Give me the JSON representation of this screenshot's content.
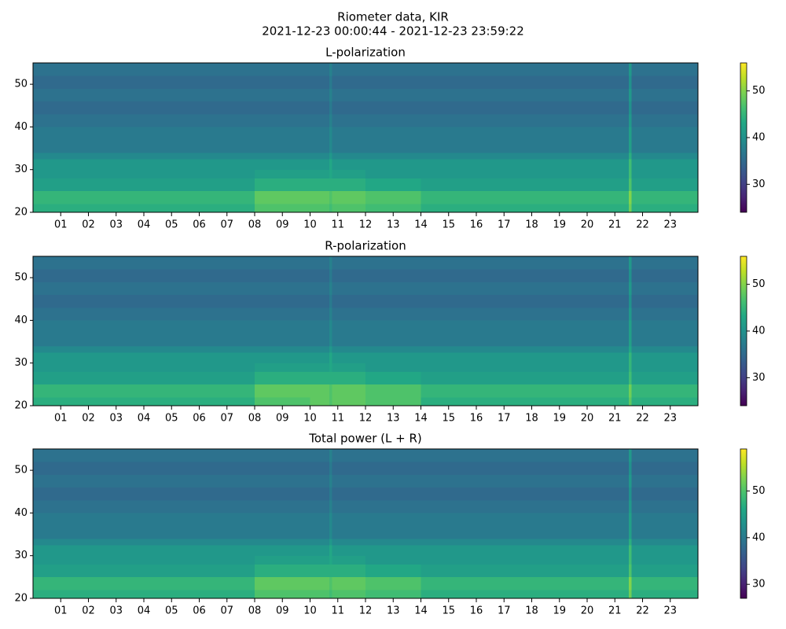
{
  "figure": {
    "title": "Riometer data, KIR",
    "subtitle": "2021-12-23 00:00:44 - 2021-12-23 23:59:22"
  },
  "chart_data": [
    {
      "type": "heatmap",
      "title": "L-polarization",
      "colormap": "viridis",
      "x": [
        0,
        2,
        4,
        6,
        8,
        10,
        10.7,
        10.8,
        12,
        14,
        16,
        18,
        20,
        21.5,
        21.6,
        22,
        24
      ],
      "y": [
        20,
        22,
        25,
        28,
        30,
        32.5,
        34,
        37,
        40,
        43,
        46,
        49,
        52,
        55
      ],
      "z": [
        [
          44,
          44,
          44,
          44,
          47,
          47,
          46,
          47,
          46,
          44,
          44,
          44,
          44,
          49,
          44,
          44
        ],
        [
          45,
          45,
          45,
          45,
          48,
          48,
          47,
          48,
          47,
          45,
          45,
          45,
          45,
          50,
          45,
          45
        ],
        [
          42,
          42,
          42,
          42,
          44,
          44,
          44,
          44,
          43,
          42,
          42,
          42,
          42,
          47,
          42,
          42
        ],
        [
          41,
          41,
          41,
          41,
          42,
          42,
          43,
          42,
          41,
          41,
          41,
          41,
          41,
          46,
          41,
          41
        ],
        [
          41,
          41,
          41,
          41,
          41,
          41,
          43,
          41,
          41,
          41,
          41,
          41,
          41,
          46,
          41,
          41
        ],
        [
          39,
          39,
          39,
          39,
          39,
          39,
          41,
          39,
          39,
          39,
          39,
          39,
          39,
          44,
          39,
          39
        ],
        [
          37,
          37,
          37,
          37,
          37,
          37,
          39,
          37,
          37,
          37,
          37,
          37,
          37,
          42,
          37,
          37
        ],
        [
          37,
          37,
          37,
          37,
          37,
          37,
          39,
          37,
          37,
          37,
          37,
          37,
          37,
          42,
          37,
          37
        ],
        [
          36,
          36,
          36,
          36,
          36,
          36,
          38,
          36,
          36,
          36,
          36,
          36,
          36,
          41,
          36,
          36
        ],
        [
          35,
          35,
          35,
          35,
          35,
          35,
          37,
          35,
          35,
          35,
          35,
          35,
          35,
          40,
          35,
          35
        ],
        [
          36,
          36,
          36,
          36,
          36,
          36,
          38,
          36,
          36,
          36,
          36,
          36,
          36,
          41,
          36,
          36
        ],
        [
          35,
          35,
          35,
          35,
          35,
          35,
          37,
          35,
          35,
          35,
          35,
          35,
          35,
          40,
          35,
          35
        ],
        [
          36,
          36,
          36,
          36,
          36,
          36,
          38,
          36,
          36,
          36,
          36,
          36,
          36,
          41,
          36,
          36
        ]
      ],
      "xlim": [
        0,
        24
      ],
      "ylim": [
        20,
        55
      ],
      "yticks": [
        20,
        30,
        40,
        50
      ],
      "xticks": [
        {
          "value": 1,
          "label": "01"
        },
        {
          "value": 2,
          "label": "02"
        },
        {
          "value": 3,
          "label": "03"
        },
        {
          "value": 4,
          "label": "04"
        },
        {
          "value": 5,
          "label": "05"
        },
        {
          "value": 6,
          "label": "06"
        },
        {
          "value": 7,
          "label": "07"
        },
        {
          "value": 8,
          "label": "08"
        },
        {
          "value": 9,
          "label": "09"
        },
        {
          "value": 10,
          "label": "10"
        },
        {
          "value": 11,
          "label": "11"
        },
        {
          "value": 12,
          "label": "12"
        },
        {
          "value": 13,
          "label": "13"
        },
        {
          "value": 14,
          "label": "14"
        },
        {
          "value": 15,
          "label": "15"
        },
        {
          "value": 16,
          "label": "16"
        },
        {
          "value": 17,
          "label": "17"
        },
        {
          "value": 18,
          "label": "18"
        },
        {
          "value": 19,
          "label": "19"
        },
        {
          "value": 20,
          "label": "20"
        },
        {
          "value": 21,
          "label": "21"
        },
        {
          "value": 22,
          "label": "22"
        },
        {
          "value": 23,
          "label": "23"
        }
      ],
      "clim": [
        24,
        56
      ],
      "cticks": [
        30,
        40,
        50
      ]
    },
    {
      "type": "heatmap",
      "title": "R-polarization",
      "colormap": "viridis",
      "x": [
        0,
        2,
        4,
        6,
        8,
        10,
        10.7,
        10.8,
        12,
        14,
        16,
        18,
        20,
        21.5,
        21.6,
        22,
        24
      ],
      "y": [
        20,
        22,
        25,
        28,
        30,
        32.5,
        34,
        37,
        40,
        43,
        46,
        49,
        52,
        55
      ],
      "z": [
        [
          44,
          44,
          44,
          44,
          47,
          48,
          47,
          48,
          47,
          44,
          44,
          44,
          44,
          48,
          44,
          44
        ],
        [
          45,
          45,
          45,
          45,
          48,
          48,
          47,
          48,
          47,
          45,
          45,
          45,
          45,
          49,
          45,
          45
        ],
        [
          42,
          42,
          42,
          42,
          44,
          44,
          44,
          44,
          43,
          42,
          42,
          42,
          42,
          46,
          42,
          42
        ],
        [
          41,
          41,
          41,
          41,
          42,
          42,
          43,
          42,
          41,
          41,
          41,
          41,
          41,
          45,
          41,
          41
        ],
        [
          41,
          41,
          41,
          41,
          41,
          41,
          43,
          41,
          41,
          41,
          41,
          41,
          41,
          45,
          41,
          41
        ],
        [
          39,
          39,
          39,
          39,
          39,
          39,
          41,
          39,
          39,
          39,
          39,
          39,
          39,
          43,
          39,
          39
        ],
        [
          37,
          37,
          37,
          37,
          37,
          37,
          39,
          37,
          37,
          37,
          37,
          37,
          37,
          42,
          37,
          37
        ],
        [
          37,
          37,
          37,
          37,
          37,
          37,
          39,
          37,
          37,
          37,
          37,
          37,
          37,
          42,
          37,
          37
        ],
        [
          36,
          36,
          36,
          36,
          36,
          36,
          38,
          36,
          36,
          36,
          36,
          36,
          36,
          41,
          36,
          36
        ],
        [
          35,
          35,
          35,
          35,
          35,
          35,
          37,
          35,
          35,
          35,
          35,
          35,
          35,
          40,
          35,
          35
        ],
        [
          36,
          36,
          36,
          36,
          36,
          36,
          38,
          36,
          36,
          36,
          36,
          36,
          36,
          41,
          36,
          36
        ],
        [
          35,
          35,
          35,
          35,
          35,
          35,
          37,
          35,
          35,
          35,
          35,
          35,
          35,
          40,
          35,
          35
        ],
        [
          36,
          36,
          36,
          36,
          36,
          36,
          38,
          36,
          36,
          36,
          36,
          36,
          36,
          41,
          36,
          36
        ]
      ],
      "xlim": [
        0,
        24
      ],
      "ylim": [
        20,
        55
      ],
      "yticks": [
        20,
        30,
        40,
        50
      ],
      "xticks": [
        {
          "value": 1,
          "label": "01"
        },
        {
          "value": 2,
          "label": "02"
        },
        {
          "value": 3,
          "label": "03"
        },
        {
          "value": 4,
          "label": "04"
        },
        {
          "value": 5,
          "label": "05"
        },
        {
          "value": 6,
          "label": "06"
        },
        {
          "value": 7,
          "label": "07"
        },
        {
          "value": 8,
          "label": "08"
        },
        {
          "value": 9,
          "label": "09"
        },
        {
          "value": 10,
          "label": "10"
        },
        {
          "value": 11,
          "label": "11"
        },
        {
          "value": 12,
          "label": "12"
        },
        {
          "value": 13,
          "label": "13"
        },
        {
          "value": 14,
          "label": "14"
        },
        {
          "value": 15,
          "label": "15"
        },
        {
          "value": 16,
          "label": "16"
        },
        {
          "value": 17,
          "label": "17"
        },
        {
          "value": 18,
          "label": "18"
        },
        {
          "value": 19,
          "label": "19"
        },
        {
          "value": 20,
          "label": "20"
        },
        {
          "value": 21,
          "label": "21"
        },
        {
          "value": 22,
          "label": "22"
        },
        {
          "value": 23,
          "label": "23"
        }
      ],
      "clim": [
        24,
        56
      ],
      "cticks": [
        30,
        40,
        50
      ]
    },
    {
      "type": "heatmap",
      "title": "Total power (L + R)",
      "colormap": "viridis",
      "x": [
        0,
        2,
        4,
        6,
        8,
        10,
        10.7,
        10.8,
        12,
        14,
        16,
        18,
        20,
        21.5,
        21.6,
        22,
        24
      ],
      "y": [
        20,
        22,
        25,
        28,
        30,
        32.5,
        34,
        37,
        40,
        43,
        46,
        49,
        52,
        55
      ],
      "z": [
        [
          47,
          47,
          47,
          47,
          50,
          50,
          49,
          50,
          49,
          47,
          47,
          47,
          47,
          52,
          47,
          47
        ],
        [
          48,
          48,
          48,
          48,
          51,
          51,
          50,
          51,
          50,
          48,
          48,
          48,
          48,
          53,
          48,
          48
        ],
        [
          45,
          45,
          45,
          45,
          47,
          47,
          47,
          47,
          46,
          45,
          45,
          45,
          45,
          50,
          45,
          45
        ],
        [
          44,
          44,
          44,
          44,
          45,
          45,
          46,
          45,
          44,
          44,
          44,
          44,
          44,
          49,
          44,
          44
        ],
        [
          44,
          44,
          44,
          44,
          44,
          44,
          46,
          44,
          44,
          44,
          44,
          44,
          44,
          49,
          44,
          44
        ],
        [
          42,
          42,
          42,
          42,
          42,
          42,
          44,
          42,
          42,
          42,
          42,
          42,
          42,
          47,
          42,
          42
        ],
        [
          40,
          40,
          40,
          40,
          40,
          40,
          42,
          40,
          40,
          40,
          40,
          40,
          40,
          45,
          40,
          40
        ],
        [
          40,
          40,
          40,
          40,
          40,
          40,
          42,
          40,
          40,
          40,
          40,
          40,
          40,
          45,
          40,
          40
        ],
        [
          39,
          39,
          39,
          39,
          39,
          39,
          41,
          39,
          39,
          39,
          39,
          39,
          39,
          44,
          39,
          39
        ],
        [
          38,
          38,
          38,
          38,
          38,
          38,
          40,
          38,
          38,
          38,
          38,
          38,
          38,
          43,
          38,
          38
        ],
        [
          39,
          39,
          39,
          39,
          39,
          39,
          41,
          39,
          39,
          39,
          39,
          39,
          39,
          44,
          39,
          39
        ],
        [
          38,
          38,
          38,
          38,
          38,
          38,
          40,
          38,
          38,
          38,
          38,
          38,
          38,
          43,
          38,
          38
        ],
        [
          39,
          39,
          39,
          39,
          39,
          39,
          41,
          39,
          39,
          39,
          39,
          39,
          39,
          44,
          39,
          39
        ]
      ],
      "xlim": [
        0,
        24
      ],
      "ylim": [
        20,
        55
      ],
      "yticks": [
        20,
        30,
        40,
        50
      ],
      "xticks": [
        {
          "value": 1,
          "label": "01"
        },
        {
          "value": 2,
          "label": "02"
        },
        {
          "value": 3,
          "label": "03"
        },
        {
          "value": 4,
          "label": "04"
        },
        {
          "value": 5,
          "label": "05"
        },
        {
          "value": 6,
          "label": "06"
        },
        {
          "value": 7,
          "label": "07"
        },
        {
          "value": 8,
          "label": "08"
        },
        {
          "value": 9,
          "label": "09"
        },
        {
          "value": 10,
          "label": "10"
        },
        {
          "value": 11,
          "label": "11"
        },
        {
          "value": 12,
          "label": "12"
        },
        {
          "value": 13,
          "label": "13"
        },
        {
          "value": 14,
          "label": "14"
        },
        {
          "value": 15,
          "label": "15"
        },
        {
          "value": 16,
          "label": "16"
        },
        {
          "value": 17,
          "label": "17"
        },
        {
          "value": 18,
          "label": "18"
        },
        {
          "value": 19,
          "label": "19"
        },
        {
          "value": 20,
          "label": "20"
        },
        {
          "value": 21,
          "label": "21"
        },
        {
          "value": 22,
          "label": "22"
        },
        {
          "value": 23,
          "label": "23"
        }
      ],
      "clim": [
        27,
        59
      ],
      "cticks": [
        30,
        40,
        50
      ]
    }
  ]
}
